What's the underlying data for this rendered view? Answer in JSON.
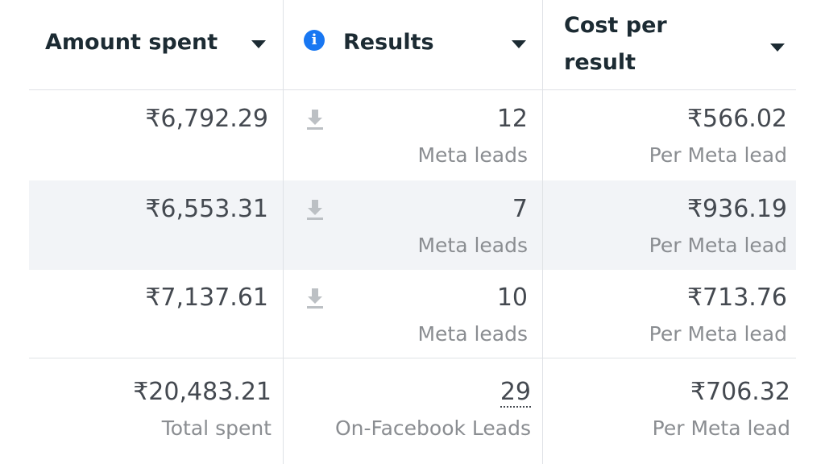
{
  "headers": {
    "amount_spent": "Amount spent",
    "results": "Results",
    "cost_per_result_line1": "Cost per",
    "cost_per_result_line2": "result",
    "results_info_icon": "info-icon"
  },
  "rows": [
    {
      "amount": "₹6,792.29",
      "results": "12",
      "results_sub": "Meta leads",
      "cost": "₹566.02",
      "cost_sub": "Per Meta lead"
    },
    {
      "amount": "₹6,553.31",
      "results": "7",
      "results_sub": "Meta leads",
      "cost": "₹936.19",
      "cost_sub": "Per Meta lead"
    },
    {
      "amount": "₹7,137.61",
      "results": "10",
      "results_sub": "Meta leads",
      "cost": "₹713.76",
      "cost_sub": "Per Meta lead"
    }
  ],
  "totals": {
    "amount": "₹20,483.21",
    "amount_sub": "Total spent",
    "results": "29",
    "results_sub": "On-Facebook Leads",
    "cost": "₹706.32",
    "cost_sub": "Per Meta lead"
  },
  "colors": {
    "info_icon": "#1877f2",
    "header_text": "#1c2b33",
    "value_text": "#444950",
    "sub_text": "#8a8d91",
    "alt_row_bg": "#f2f4f7"
  }
}
